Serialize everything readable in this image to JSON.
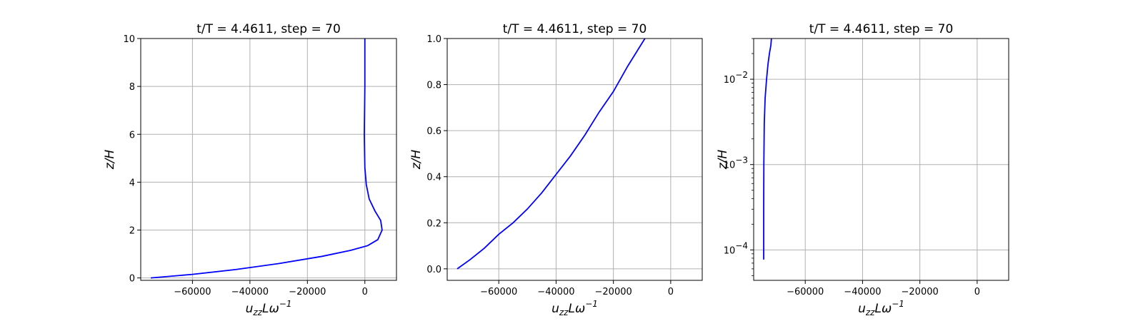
{
  "chart_data": [
    {
      "type": "line",
      "title": "t/T = 4.4611, step = 70",
      "xlabel": {
        "base": "u",
        "sub": "zz",
        "mid": "Lω",
        "sup": "−1"
      },
      "ylabel": "z/H",
      "xlim": [
        -78000,
        11000
      ],
      "ylim": [
        -0.1,
        10
      ],
      "yscale": "linear",
      "xticks": [
        -60000,
        -40000,
        -20000,
        0
      ],
      "xtick_labels": [
        "−60000",
        "−40000",
        "−20000",
        "0"
      ],
      "yticks": [
        0,
        2,
        4,
        6,
        8,
        10
      ],
      "ytick_labels": [
        "0",
        "2",
        "4",
        "6",
        "8",
        "10"
      ],
      "grid": true,
      "series": [
        {
          "color": "#0000ff",
          "points": [
            [
              -74500,
              0.0
            ],
            [
              -60000,
              0.15
            ],
            [
              -45000,
              0.35
            ],
            [
              -30000,
              0.6
            ],
            [
              -15000,
              0.9
            ],
            [
              -5000,
              1.15
            ],
            [
              1000,
              1.35
            ],
            [
              4500,
              1.6
            ],
            [
              6000,
              2.0
            ],
            [
              5500,
              2.4
            ],
            [
              3500,
              2.8
            ],
            [
              1500,
              3.3
            ],
            [
              500,
              3.9
            ],
            [
              0,
              4.6
            ],
            [
              -200,
              6.0
            ],
            [
              0,
              8.0
            ],
            [
              0,
              10.0
            ]
          ]
        }
      ]
    },
    {
      "type": "line",
      "title": "t/T = 4.4611, step = 70",
      "xlabel": {
        "base": "u",
        "sub": "zz",
        "mid": "Lω",
        "sup": "−1"
      },
      "ylabel": "z/H",
      "xlim": [
        -78000,
        11000
      ],
      "ylim": [
        -0.05,
        1.0
      ],
      "yscale": "linear",
      "xticks": [
        -60000,
        -40000,
        -20000,
        0
      ],
      "xtick_labels": [
        "−60000",
        "−40000",
        "−20000",
        "0"
      ],
      "yticks": [
        0.0,
        0.2,
        0.4,
        0.6,
        0.8,
        1.0
      ],
      "ytick_labels": [
        "0.0",
        "0.2",
        "0.4",
        "0.6",
        "0.8",
        "1.0"
      ],
      "grid": true,
      "series": [
        {
          "color": "#0000ff",
          "points": [
            [
              -74500,
              0.0
            ],
            [
              -70000,
              0.04
            ],
            [
              -65000,
              0.09
            ],
            [
              -60000,
              0.15
            ],
            [
              -55000,
              0.2
            ],
            [
              -50000,
              0.26
            ],
            [
              -45000,
              0.33
            ],
            [
              -40000,
              0.41
            ],
            [
              -35000,
              0.49
            ],
            [
              -30000,
              0.58
            ],
            [
              -25000,
              0.68
            ],
            [
              -20000,
              0.77
            ],
            [
              -15000,
              0.88
            ],
            [
              -11000,
              0.96
            ],
            [
              -9000,
              1.0
            ]
          ]
        }
      ]
    },
    {
      "type": "line",
      "title": "t/T = 4.4611, step = 70",
      "xlabel": {
        "base": "u",
        "sub": "zz",
        "mid": "Lω",
        "sup": "−1"
      },
      "ylabel": "z/H",
      "xlim": [
        -78000,
        11000
      ],
      "ylim": [
        4.4e-05,
        0.03
      ],
      "yscale": "log",
      "xticks": [
        -60000,
        -40000,
        -20000,
        0
      ],
      "xtick_labels": [
        "−60000",
        "−40000",
        "−20000",
        "0"
      ],
      "yticks": [
        0.0001,
        0.001,
        0.01
      ],
      "ytick_labels": [
        {
          "base": "10",
          "exp": "−4"
        },
        {
          "base": "10",
          "exp": "−3"
        },
        {
          "base": "10",
          "exp": "−2"
        }
      ],
      "grid": true,
      "series": [
        {
          "color": "#0000ff",
          "points": [
            [
              -74500,
              7.7e-05
            ],
            [
              -74500,
              0.0003
            ],
            [
              -74450,
              0.001
            ],
            [
              -74300,
              0.003
            ],
            [
              -74000,
              0.006
            ],
            [
              -73500,
              0.01
            ],
            [
              -73000,
              0.015
            ],
            [
              -72500,
              0.02
            ],
            [
              -72000,
              0.025
            ],
            [
              -71800,
              0.03
            ]
          ]
        }
      ]
    }
  ]
}
